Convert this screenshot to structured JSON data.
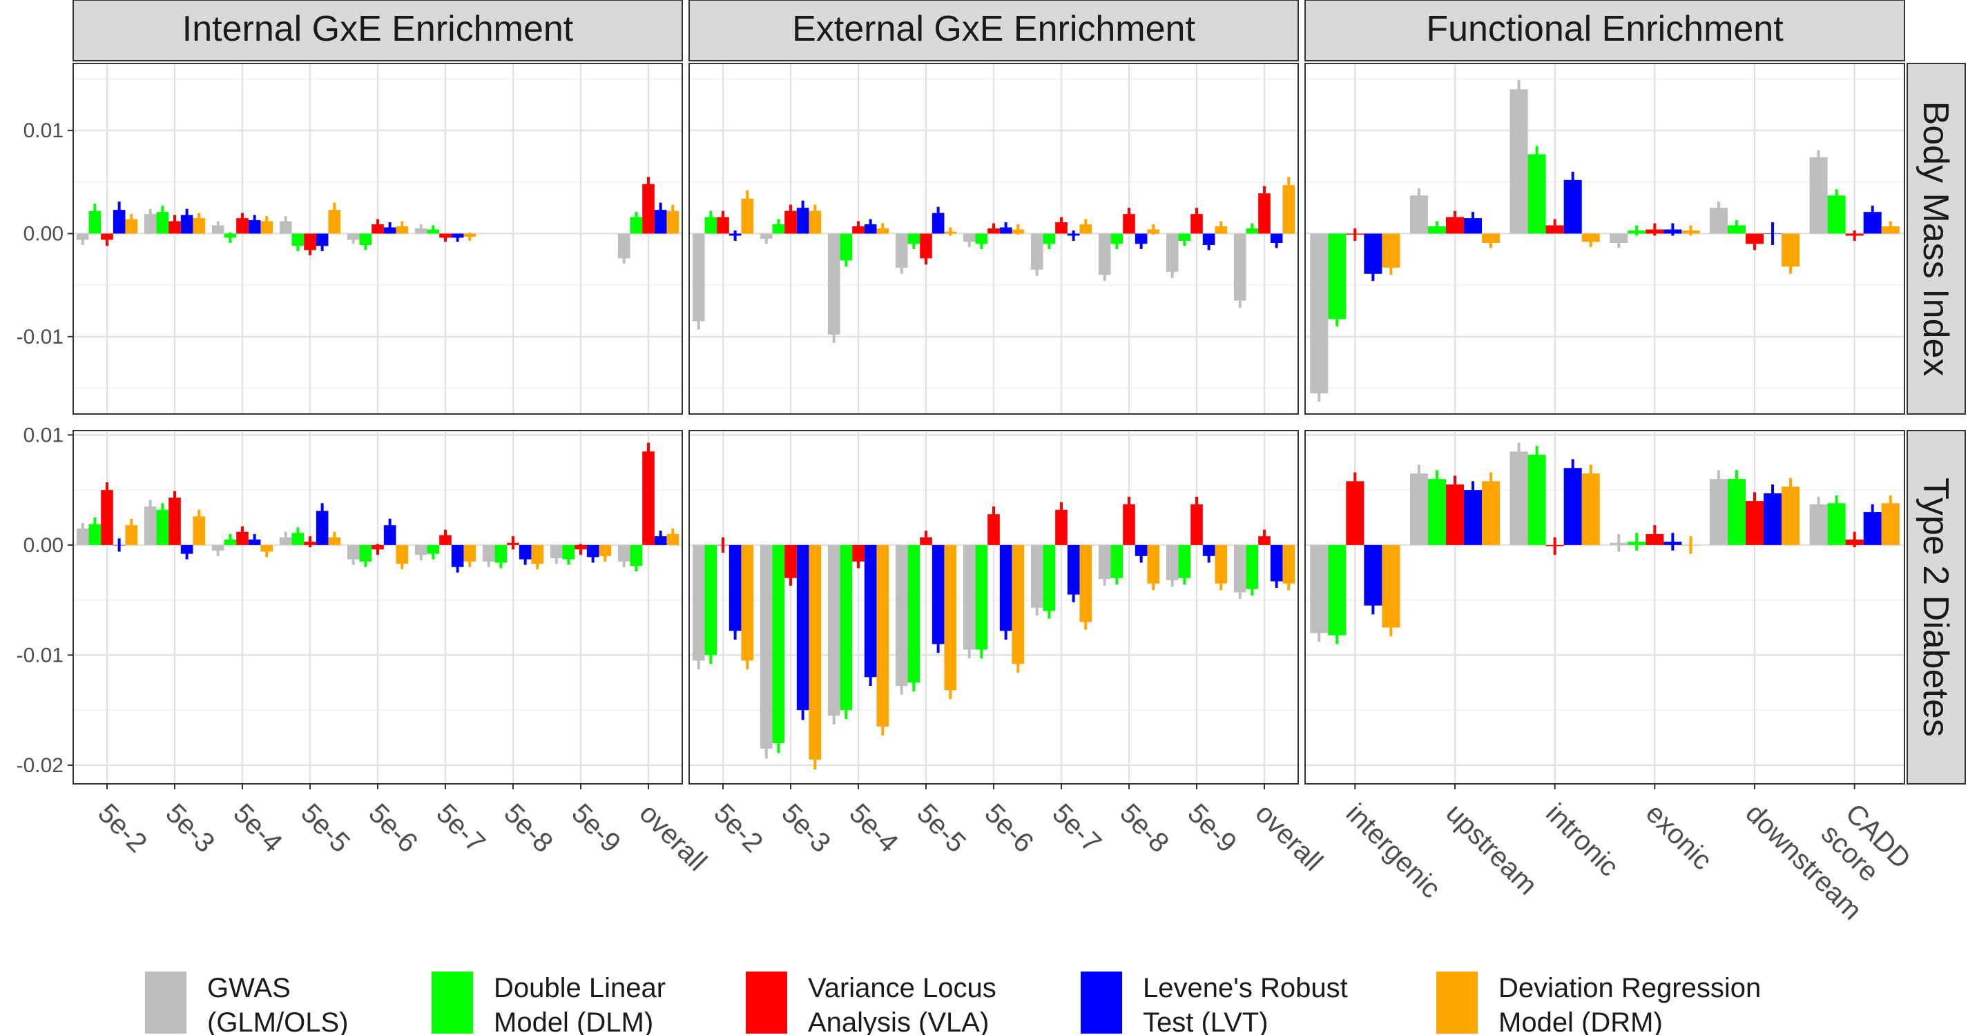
{
  "facets": {
    "columns": [
      "Internal GxE Enrichment",
      "External GxE Enrichment",
      "Functional Enrichment"
    ],
    "rows": [
      "Body Mass Index",
      "Type 2 Diabetes"
    ]
  },
  "legend": {
    "position": "bottom",
    "entries": [
      {
        "key": "GWAS",
        "lines": [
          "GWAS",
          "(GLM/OLS)"
        ],
        "color": "#bebebe"
      },
      {
        "key": "DLM",
        "lines": [
          "Double Linear",
          "Model (DLM)"
        ],
        "color": "#00ff00"
      },
      {
        "key": "VLA",
        "lines": [
          "Variance Locus",
          "Analysis (VLA)"
        ],
        "color": "#ff0000"
      },
      {
        "key": "LVT",
        "lines": [
          "Levene's Robust",
          "Test (LVT)"
        ],
        "color": "#0000ff"
      },
      {
        "key": "DRM",
        "lines": [
          "Deviation Regression",
          "Model (DRM)"
        ],
        "color": "#ffa500"
      }
    ]
  },
  "chart_data": [
    {
      "type": "bar",
      "column": "Internal GxE Enrichment",
      "row": "Body Mass Index",
      "categories": [
        "5e-2",
        "5e-3",
        "5e-4",
        "5e-5",
        "5e-6",
        "5e-7",
        "5e-8",
        "5e-9",
        "overall"
      ],
      "ylim": [
        -0.0175,
        0.0165
      ],
      "yticks": [
        -0.01,
        0.0,
        0.01
      ],
      "ytick_labels": [
        "-0.01",
        "0.00",
        "0.01"
      ],
      "grid": true,
      "series": [
        {
          "name": "GWAS",
          "values": [
            -0.0006,
            0.0019,
            0.0008,
            0.0012,
            -0.0006,
            0.0005,
            null,
            null,
            -0.0024
          ],
          "errors": [
            0.0005,
            0.0005,
            0.0004,
            0.0005,
            0.0004,
            0.0004,
            null,
            null,
            0.0005
          ]
        },
        {
          "name": "DLM",
          "values": [
            0.0022,
            0.0021,
            -0.0004,
            -0.0012,
            -0.0011,
            0.0004,
            null,
            null,
            0.0016
          ],
          "errors": [
            0.0007,
            0.0006,
            0.0005,
            0.0005,
            0.0005,
            0.0004,
            null,
            null,
            0.0005
          ]
        },
        {
          "name": "VLA",
          "values": [
            -0.0006,
            0.0012,
            0.0015,
            -0.0016,
            0.0009,
            -0.0004,
            null,
            null,
            0.0048
          ],
          "errors": [
            0.0006,
            0.0006,
            0.0005,
            0.0005,
            0.0005,
            0.0004,
            null,
            null,
            0.0007
          ]
        },
        {
          "name": "LVT",
          "values": [
            0.0023,
            0.0018,
            0.0013,
            -0.0012,
            0.0006,
            -0.0004,
            null,
            null,
            0.0023
          ],
          "errors": [
            0.0008,
            0.0006,
            0.0005,
            0.0005,
            0.0005,
            0.0004,
            null,
            null,
            0.0007
          ]
        },
        {
          "name": "DRM",
          "values": [
            0.0014,
            0.0015,
            0.0012,
            0.0023,
            0.0007,
            -0.0003,
            null,
            null,
            0.0022
          ],
          "errors": [
            0.0005,
            0.0005,
            0.0005,
            0.0007,
            0.0005,
            0.0004,
            null,
            null,
            0.0006
          ]
        }
      ]
    },
    {
      "type": "bar",
      "column": "External GxE Enrichment",
      "row": "Body Mass Index",
      "categories": [
        "5e-2",
        "5e-3",
        "5e-4",
        "5e-5",
        "5e-6",
        "5e-7",
        "5e-8",
        "5e-9",
        "overall"
      ],
      "ylim": [
        -0.0175,
        0.0165
      ],
      "yticks": [
        -0.01,
        0.0,
        0.01
      ],
      "ytick_labels": [
        "-0.01",
        "0.00",
        "0.01"
      ],
      "grid": true,
      "series": [
        {
          "name": "GWAS",
          "values": [
            -0.0085,
            -0.0005,
            -0.0098,
            -0.0033,
            -0.0008,
            -0.0035,
            -0.004,
            -0.0037,
            -0.0065
          ],
          "errors": [
            0.0008,
            0.0005,
            0.0008,
            0.0006,
            0.0005,
            0.0006,
            0.0006,
            0.0006,
            0.0007
          ]
        },
        {
          "name": "DLM",
          "values": [
            0.0016,
            0.0009,
            -0.0026,
            -0.001,
            -0.001,
            -0.001,
            -0.001,
            -0.0007,
            0.0005
          ],
          "errors": [
            0.0006,
            0.0005,
            0.0006,
            0.0005,
            0.0005,
            0.0005,
            0.0005,
            0.0005,
            0.0005
          ]
        },
        {
          "name": "VLA",
          "values": [
            0.0016,
            0.0022,
            0.0007,
            -0.0024,
            0.0005,
            0.0011,
            0.0019,
            0.0019,
            0.0039
          ],
          "errors": [
            0.0006,
            0.0006,
            0.0005,
            0.0006,
            0.0005,
            0.0005,
            0.0006,
            0.0006,
            0.0007
          ]
        },
        {
          "name": "LVT",
          "values": [
            -0.0002,
            0.0025,
            0.0009,
            0.002,
            0.0006,
            -0.0002,
            -0.001,
            -0.0011,
            -0.0009
          ],
          "errors": [
            0.0005,
            0.0007,
            0.0005,
            0.0006,
            0.0005,
            0.0005,
            0.0005,
            0.0005,
            0.0005
          ]
        },
        {
          "name": "DRM",
          "values": [
            0.0034,
            0.0022,
            0.0005,
            0.0002,
            0.0004,
            0.0009,
            0.0004,
            0.0007,
            0.0047
          ],
          "errors": [
            0.0008,
            0.0006,
            0.0005,
            0.0004,
            0.0005,
            0.0005,
            0.0005,
            0.0005,
            0.0008
          ]
        }
      ]
    },
    {
      "type": "bar",
      "column": "Functional Enrichment",
      "row": "Body Mass Index",
      "categories": [
        "intergenic",
        "upstream",
        "intronic",
        "exonic",
        "downstream",
        "CADD score"
      ],
      "ylim": [
        -0.0175,
        0.0165
      ],
      "yticks": [
        -0.01,
        0.0,
        0.01
      ],
      "ytick_labels": [
        "-0.01",
        "0.00",
        "0.01"
      ],
      "grid": true,
      "series": [
        {
          "name": "GWAS",
          "values": [
            -0.0155,
            0.0037,
            0.014,
            -0.0009,
            0.0025,
            0.0074
          ],
          "errors": [
            0.0008,
            0.0007,
            0.0009,
            0.0005,
            0.0006,
            0.0007
          ]
        },
        {
          "name": "DLM",
          "values": [
            -0.0083,
            0.0007,
            0.0077,
            0.0003,
            0.0008,
            0.0037
          ],
          "errors": [
            0.0007,
            0.0005,
            0.0008,
            0.0005,
            0.0005,
            0.0006
          ]
        },
        {
          "name": "VLA",
          "values": [
            -0.0001,
            0.0016,
            0.0008,
            0.0004,
            -0.001,
            -0.0002
          ],
          "errors": [
            0.0006,
            0.0006,
            0.0006,
            0.0006,
            0.0006,
            0.0005
          ]
        },
        {
          "name": "LVT",
          "values": [
            -0.0039,
            0.0015,
            0.0052,
            0.0004,
            0.0,
            0.0021
          ],
          "errors": [
            0.0007,
            0.0006,
            0.0008,
            0.0006,
            0.0011,
            0.0006
          ]
        },
        {
          "name": "DRM",
          "values": [
            -0.0033,
            -0.0009,
            -0.0008,
            0.0003,
            -0.0032,
            0.0007
          ],
          "errors": [
            0.0007,
            0.0005,
            0.0005,
            0.0005,
            0.0007,
            0.0005
          ]
        }
      ]
    },
    {
      "type": "bar",
      "column": "Internal GxE Enrichment",
      "row": "Type 2 Diabetes",
      "categories": [
        "5e-2",
        "5e-3",
        "5e-4",
        "5e-5",
        "5e-6",
        "5e-7",
        "5e-8",
        "5e-9",
        "overall"
      ],
      "ylim": [
        -0.0217,
        0.0104
      ],
      "yticks": [
        -0.02,
        -0.01,
        0.0,
        0.01
      ],
      "ytick_labels": [
        "-0.02",
        "-0.01",
        "0.00",
        "0.01"
      ],
      "grid": true,
      "series": [
        {
          "name": "GWAS",
          "values": [
            0.0015,
            0.0035,
            -0.0005,
            0.0007,
            -0.0013,
            -0.0009,
            -0.0015,
            -0.0012,
            -0.0015
          ],
          "errors": [
            0.0005,
            0.0006,
            0.0005,
            0.0005,
            0.0005,
            0.0005,
            0.0005,
            0.0005,
            0.0005
          ]
        },
        {
          "name": "DLM",
          "values": [
            0.0019,
            0.0032,
            0.0005,
            0.0011,
            -0.0015,
            -0.0008,
            -0.0016,
            -0.0013,
            -0.0019
          ],
          "errors": [
            0.0006,
            0.0006,
            0.0005,
            0.0005,
            0.0005,
            0.0005,
            0.0005,
            0.0005,
            0.0005
          ]
        },
        {
          "name": "VLA",
          "values": [
            0.005,
            0.0043,
            0.0012,
            0.0003,
            -0.0004,
            0.0009,
            0.0002,
            -0.0004,
            0.0085
          ],
          "errors": [
            0.0007,
            0.0006,
            0.0005,
            0.0005,
            0.0005,
            0.0005,
            0.0006,
            0.0005,
            0.0008
          ]
        },
        {
          "name": "LVT",
          "values": [
            0.0,
            -0.0008,
            0.0005,
            0.0031,
            0.0018,
            -0.002,
            -0.0013,
            -0.0011,
            0.0008
          ],
          "errors": [
            0.0006,
            0.0005,
            0.0005,
            0.0007,
            0.0006,
            0.0005,
            0.0005,
            0.0005,
            0.0005
          ]
        },
        {
          "name": "DRM",
          "values": [
            0.0018,
            0.0026,
            -0.0006,
            0.0007,
            -0.0017,
            -0.0015,
            -0.0017,
            -0.001,
            0.001
          ],
          "errors": [
            0.0006,
            0.0006,
            0.0005,
            0.0005,
            0.0005,
            0.0005,
            0.0005,
            0.0005,
            0.0005
          ]
        }
      ]
    },
    {
      "type": "bar",
      "column": "External GxE Enrichment",
      "row": "Type 2 Diabetes",
      "categories": [
        "5e-2",
        "5e-3",
        "5e-4",
        "5e-5",
        "5e-6",
        "5e-7",
        "5e-8",
        "5e-9",
        "overall"
      ],
      "ylim": [
        -0.0217,
        0.0104
      ],
      "yticks": [
        -0.02,
        -0.01,
        0.0,
        0.01
      ],
      "ytick_labels": [
        "-0.02",
        "-0.01",
        "0.00",
        "0.01"
      ],
      "grid": true,
      "series": [
        {
          "name": "GWAS",
          "values": [
            -0.0105,
            -0.0185,
            -0.0155,
            -0.0128,
            -0.0095,
            -0.0057,
            -0.0031,
            -0.0032,
            -0.0043
          ],
          "errors": [
            0.0008,
            0.0009,
            0.0008,
            0.0008,
            0.0008,
            0.0007,
            0.0006,
            0.0006,
            0.0006
          ]
        },
        {
          "name": "DLM",
          "values": [
            -0.01,
            -0.018,
            -0.015,
            -0.0125,
            -0.0095,
            -0.006,
            -0.003,
            -0.003,
            -0.004
          ],
          "errors": [
            0.0008,
            0.0009,
            0.0008,
            0.0008,
            0.0008,
            0.0007,
            0.0006,
            0.0006,
            0.0006
          ]
        },
        {
          "name": "VLA",
          "values": [
            0.0,
            -0.003,
            -0.0015,
            0.0007,
            0.0028,
            0.0032,
            0.0037,
            0.0037,
            0.0008
          ],
          "errors": [
            0.0007,
            0.0007,
            0.0006,
            0.0006,
            0.0007,
            0.0007,
            0.0007,
            0.0007,
            0.0006
          ]
        },
        {
          "name": "LVT",
          "values": [
            -0.0078,
            -0.015,
            -0.012,
            -0.009,
            -0.0078,
            -0.0045,
            -0.001,
            -0.001,
            -0.0033
          ],
          "errors": [
            0.0008,
            0.0009,
            0.0008,
            0.0008,
            0.0008,
            0.0007,
            0.0006,
            0.0006,
            0.0006
          ]
        },
        {
          "name": "DRM",
          "values": [
            -0.0105,
            -0.0195,
            -0.0165,
            -0.0132,
            -0.0108,
            -0.007,
            -0.0035,
            -0.0035,
            -0.0035
          ],
          "errors": [
            0.0008,
            0.0009,
            0.0008,
            0.0008,
            0.0008,
            0.0007,
            0.0006,
            0.0006,
            0.0006
          ]
        }
      ]
    },
    {
      "type": "bar",
      "column": "Functional Enrichment",
      "row": "Type 2 Diabetes",
      "categories": [
        "intergenic",
        "upstream",
        "intronic",
        "exonic",
        "downstream",
        "CADD score"
      ],
      "ylim": [
        -0.0217,
        0.0104
      ],
      "yticks": [
        -0.02,
        -0.01,
        0.0,
        0.01
      ],
      "ytick_labels": [
        "-0.02",
        "-0.01",
        "0.00",
        "0.01"
      ],
      "grid": true,
      "series": [
        {
          "name": "GWAS",
          "values": [
            -0.008,
            0.0065,
            0.0085,
            0.0002,
            0.006,
            0.0037
          ],
          "errors": [
            0.0008,
            0.0008,
            0.0008,
            0.0008,
            0.0008,
            0.0007
          ]
        },
        {
          "name": "DLM",
          "values": [
            -0.0082,
            0.006,
            0.0082,
            0.0003,
            0.006,
            0.0038
          ],
          "errors": [
            0.0008,
            0.0008,
            0.0008,
            0.0008,
            0.0008,
            0.0007
          ]
        },
        {
          "name": "VLA",
          "values": [
            0.0058,
            0.0055,
            -0.0001,
            0.001,
            0.004,
            0.0005
          ],
          "errors": [
            0.0008,
            0.0008,
            0.0008,
            0.0008,
            0.0008,
            0.0007
          ]
        },
        {
          "name": "LVT",
          "values": [
            -0.0055,
            0.005,
            0.007,
            0.0003,
            0.0047,
            0.003
          ],
          "errors": [
            0.0008,
            0.0008,
            0.0008,
            0.0008,
            0.0008,
            0.0007
          ]
        },
        {
          "name": "DRM",
          "values": [
            -0.0075,
            0.0058,
            0.0065,
            0.0,
            0.0053,
            0.0038
          ],
          "errors": [
            0.0008,
            0.0008,
            0.0008,
            0.0008,
            0.0008,
            0.0007
          ]
        }
      ]
    }
  ]
}
